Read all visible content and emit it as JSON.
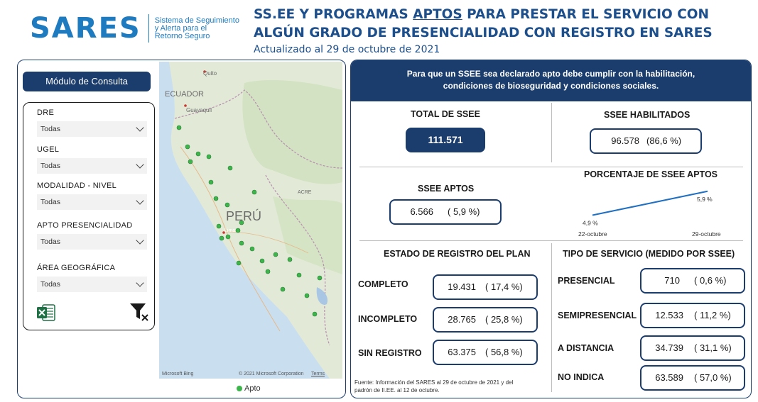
{
  "logo": {
    "word": "SARES",
    "subtitle_line1": "Sistema de Seguimiento",
    "subtitle_line2": "y Alerta para el",
    "subtitle_line3": "Retorno Seguro"
  },
  "header": {
    "title_part1": "SS.EE Y PROGRAMAS ",
    "title_underlined": "APTOS",
    "title_part2": " PARA PRESTAR EL SERVICIO CON ALGÚN GRADO DE PRESENCIALIDAD CON REGISTRO EN SARES",
    "updated": "Actualizado al 29 de octubre de 2021"
  },
  "sidebar": {
    "module_title": "Módulo de Consulta",
    "filters": [
      {
        "label": "DRE",
        "value": "Todas"
      },
      {
        "label": "UGEL",
        "value": "Todas"
      },
      {
        "label": "MODALIDAD - NIVEL",
        "value": "Todas"
      },
      {
        "label": "APTO PRESENCIALIDAD",
        "value": "Todas"
      },
      {
        "label": "ÁREA GEOGRÁFICA",
        "value": "Todas"
      }
    ]
  },
  "map": {
    "labels": {
      "ecuador": "ECUADOR",
      "quito": "Quito",
      "guayaquil": "Guayaquil",
      "peru": "PERÚ",
      "acre": "ACRE",
      "lima": "Lima"
    },
    "provider": "Microsoft Bing",
    "copyright": "© 2021 Microsoft Corporation",
    "terms": "Terms",
    "legend": "Apto",
    "marker_color": "#3cb54a"
  },
  "main": {
    "banner_line1": "Para que un SSEE sea declarado apto debe cumplir con la habilitación,",
    "banner_line2": "condiciones de bioseguridad y condiciones sociales.",
    "total": {
      "title": "TOTAL DE SSEE",
      "value": "111.571"
    },
    "habilitados": {
      "title": "SSEE HABILITADOS",
      "value": "96.578",
      "pct": "(86,6 %)"
    },
    "aptos": {
      "title": "SSEE APTOS",
      "value": "6.566",
      "pct": "(  5,9 %)"
    },
    "porcentaje_title": "PORCENTAJE DE SSEE APTOS",
    "estado": {
      "title": "ESTADO DE REGISTRO DEL PLAN",
      "rows": [
        {
          "label": "COMPLETO",
          "value": "19.431",
          "pct": "( 17,4 %)"
        },
        {
          "label": "INCOMPLETO",
          "value": "28.765",
          "pct": "( 25,8 %)"
        },
        {
          "label": "SIN REGISTRO",
          "value": "63.375",
          "pct": "( 56,8 %)"
        }
      ]
    },
    "tipo": {
      "title": "TIPO DE SERVICIO (MEDIDO POR SSEE)",
      "rows": [
        {
          "label": "PRESENCIAL",
          "value": "710",
          "pct": "(  0,6 %)"
        },
        {
          "label": "SEMIPRESENCIAL",
          "value": "12.533",
          "pct": "( 11,2 %)"
        },
        {
          "label": "A DISTANCIA",
          "value": "34.739",
          "pct": "( 31,1 %)"
        },
        {
          "label": "NO INDICA",
          "value": "63.589",
          "pct": "( 57,0 %)"
        }
      ]
    },
    "source_line1": "Fuente: Información del SARES al 29 de octubre de 2021 y del",
    "source_line2": "padrón de II.EE. al 12 de octubre.",
    "accent": "#1b3d6e"
  },
  "chart_data": {
    "type": "line",
    "title": "PORCENTAJE DE SSEE APTOS",
    "x": [
      "22-octubre",
      "29-octubre"
    ],
    "series": [
      {
        "values": [
          4.9,
          5.9
        ],
        "labels": [
          "4,9 %",
          "5,9 %"
        ]
      }
    ],
    "xlabel": "",
    "ylabel": "",
    "grid": false,
    "color": "#1f6fc2"
  }
}
